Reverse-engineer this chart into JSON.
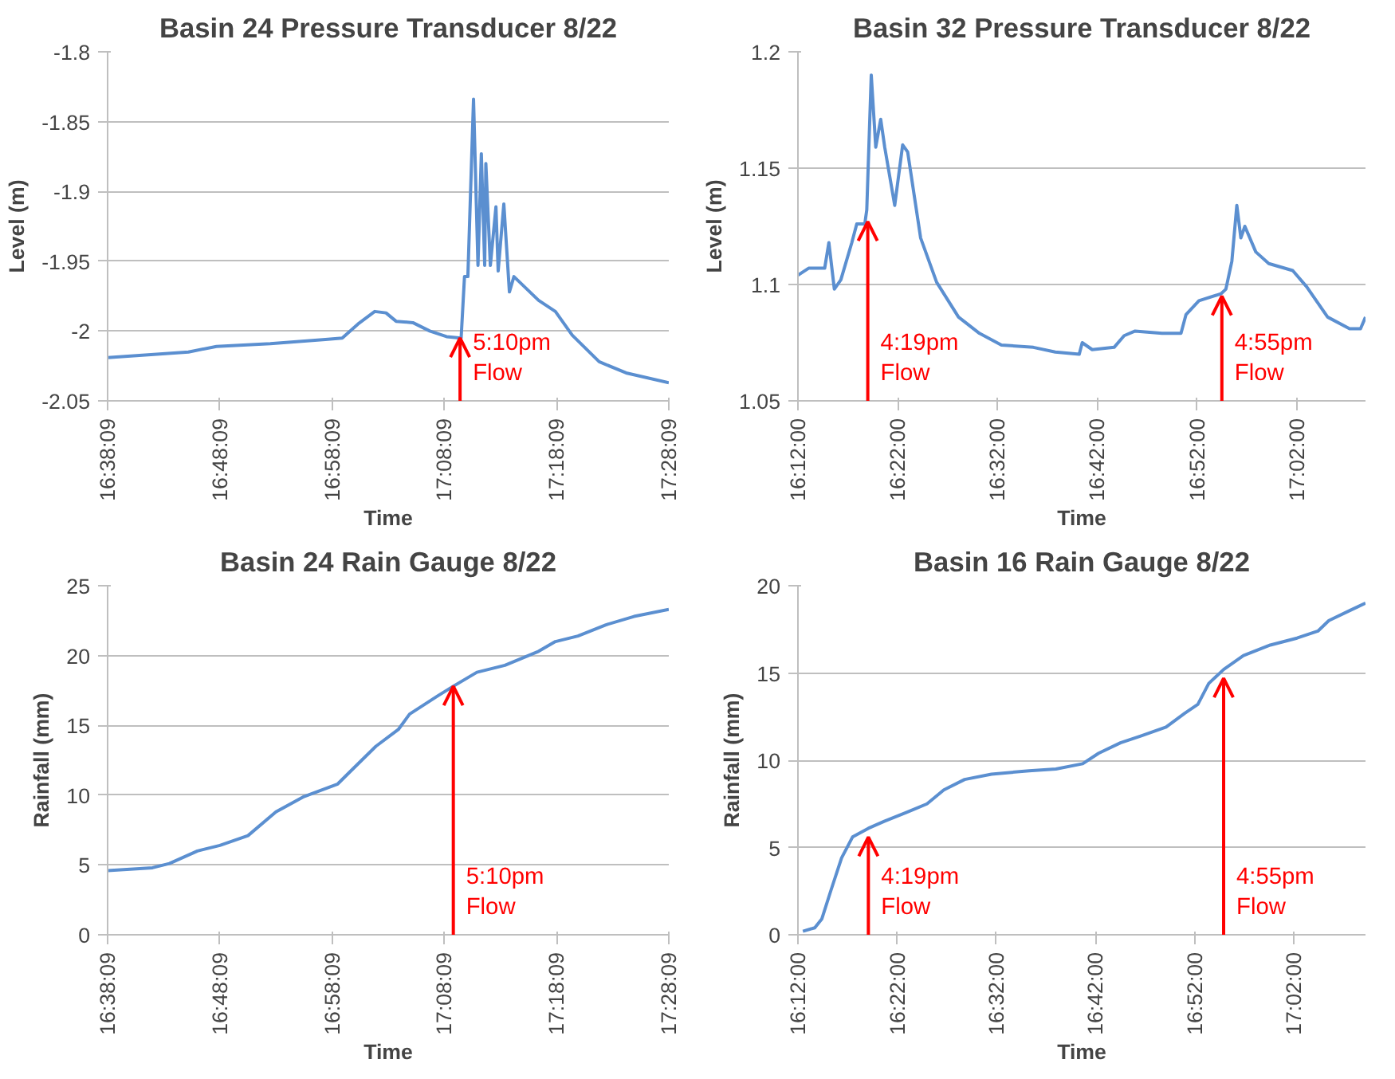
{
  "chart_data": [
    {
      "type": "line",
      "title": "Basin 24 Pressure Transducer 8/22",
      "xlabel": "Time",
      "ylabel": "Level (m)",
      "grid": "y",
      "x": [
        16.6358,
        16.7558,
        16.7975,
        16.8775,
        16.9592,
        16.9842,
        17.0075,
        17.0325,
        17.0492,
        17.0642,
        17.0892,
        17.1142,
        17.1392,
        17.1608,
        17.1658,
        17.1708,
        17.1792,
        17.1858,
        17.1908,
        17.1958,
        17.1975,
        17.2042,
        17.2125,
        17.2158,
        17.2242,
        17.2325,
        17.2392,
        17.2758,
        17.3008,
        17.3258,
        17.3658,
        17.4058,
        17.4692
      ],
      "series": [
        {
          "color": "#5b8fd0",
          "values": [
            -2.019,
            -2.015,
            -2.011,
            -2.009,
            -2.006,
            -2.005,
            -1.995,
            -1.986,
            -1.987,
            -1.993,
            -1.994,
            -2.0,
            -2.004,
            -2.005,
            -1.961,
            -1.961,
            -1.834,
            -1.953,
            -1.873,
            -1.953,
            -1.88,
            -1.953,
            -1.911,
            -1.957,
            -1.909,
            -1.972,
            -1.961,
            -1.978,
            -1.986,
            -2.003,
            -2.022,
            -2.03,
            -2.037
          ]
        }
      ],
      "xlim": [
        16.6358,
        17.4692
      ],
      "xticks": [
        {
          "value": 16.6358,
          "label": "16:38:09"
        },
        {
          "value": 16.8025,
          "label": "16:48:09"
        },
        {
          "value": 16.9692,
          "label": "16:58:09"
        },
        {
          "value": 17.1358,
          "label": "17:08:09"
        },
        {
          "value": 17.3025,
          "label": "17:18:09"
        },
        {
          "value": 17.4692,
          "label": "17:28:09"
        }
      ],
      "ylim": [
        -2.05,
        -1.8
      ],
      "yticks": [
        -2.05,
        -2,
        -1.95,
        -1.9,
        -1.85,
        -1.8
      ],
      "annotations": [
        {
          "text": "5:10pm\nFlow",
          "x": 17.1592,
          "y": -2.005
        }
      ]
    },
    {
      "type": "line",
      "title": "Basin 32 Pressure Transducer 8/22",
      "xlabel": "Time",
      "ylabel": "Level (m)",
      "grid": "y",
      "x": [
        16.2,
        16.2178,
        16.2447,
        16.2517,
        16.2608,
        16.2717,
        16.29,
        16.2983,
        16.3117,
        16.315,
        16.3225,
        16.33,
        16.3383,
        16.345,
        16.3617,
        16.375,
        16.3833,
        16.405,
        16.4317,
        16.4683,
        16.5033,
        16.54,
        16.5933,
        16.63,
        16.67,
        16.675,
        16.6917,
        16.7283,
        16.745,
        16.7633,
        16.8083,
        16.84,
        16.8483,
        16.87,
        16.9067,
        16.915,
        16.925,
        16.9333,
        16.94,
        16.9467,
        16.965,
        16.9867,
        17.0267,
        17.05,
        17.085,
        17.1217,
        17.14,
        17.1483
      ],
      "series": [
        {
          "color": "#5b8fd0",
          "values": [
            1.104,
            1.107,
            1.107,
            1.118,
            1.098,
            1.102,
            1.118,
            1.126,
            1.126,
            1.132,
            1.19,
            1.159,
            1.171,
            1.159,
            1.134,
            1.16,
            1.157,
            1.12,
            1.101,
            1.086,
            1.079,
            1.074,
            1.073,
            1.071,
            1.07,
            1.075,
            1.072,
            1.073,
            1.078,
            1.08,
            1.079,
            1.079,
            1.087,
            1.093,
            1.096,
            1.098,
            1.11,
            1.134,
            1.12,
            1.125,
            1.114,
            1.109,
            1.106,
            1.099,
            1.086,
            1.081,
            1.081,
            1.086
          ]
        }
      ],
      "xlim": [
        16.2,
        17.1483
      ],
      "xticks": [
        {
          "value": 16.2,
          "label": "16:12:00"
        },
        {
          "value": 16.3667,
          "label": "16:22:00"
        },
        {
          "value": 16.5333,
          "label": "16:32:00"
        },
        {
          "value": 16.7,
          "label": "16:42:00"
        },
        {
          "value": 16.8667,
          "label": "16:52:00"
        },
        {
          "value": 17.0333,
          "label": "17:02:00"
        }
      ],
      "ylim": [
        1.05,
        1.2
      ],
      "yticks": [
        1.05,
        1.1,
        1.15,
        1.2
      ],
      "annotations": [
        {
          "text": "4:19pm\nFlow",
          "x": 16.3167,
          "y": 1.127
        },
        {
          "text": "4:55pm\nFlow",
          "x": 16.9083,
          "y": 1.095
        }
      ]
    },
    {
      "type": "line",
      "title": "Basin 24 Rain Gauge 8/22",
      "xlabel": "Time",
      "ylabel": "Rainfall (mm)",
      "grid": "y",
      "x": [
        16.6358,
        16.7025,
        16.7275,
        16.7692,
        16.8025,
        16.8442,
        16.8858,
        16.9275,
        16.9775,
        16.9942,
        17.0342,
        17.0675,
        17.0842,
        17.1258,
        17.1492,
        17.1842,
        17.2258,
        17.2758,
        17.3008,
        17.3342,
        17.3758,
        17.4175,
        17.4692
      ],
      "series": [
        {
          "color": "#5b8fd0",
          "values": [
            4.6,
            4.8,
            5.1,
            6.0,
            6.4,
            7.1,
            8.8,
            9.9,
            10.8,
            11.6,
            13.5,
            14.7,
            15.8,
            17.1,
            17.8,
            18.8,
            19.3,
            20.3,
            21.0,
            21.4,
            22.2,
            22.8,
            23.3
          ]
        }
      ],
      "xlim": [
        16.6358,
        17.4692
      ],
      "xticks": [
        {
          "value": 16.6358,
          "label": "16:38:09"
        },
        {
          "value": 16.8025,
          "label": "16:48:09"
        },
        {
          "value": 16.9692,
          "label": "16:58:09"
        },
        {
          "value": 17.1358,
          "label": "17:08:09"
        },
        {
          "value": 17.3025,
          "label": "17:18:09"
        },
        {
          "value": 17.4692,
          "label": "17:28:09"
        }
      ],
      "ylim": [
        0,
        25
      ],
      "yticks": [
        0,
        5,
        10,
        15,
        20,
        25
      ],
      "annotations": [
        {
          "text": "5:10pm\nFlow",
          "x": 17.1492,
          "y": 17.8
        }
      ]
    },
    {
      "type": "line",
      "title": "Basin 16 Rain Gauge 8/22",
      "xlabel": "Time",
      "ylabel": "Rainfall (mm)",
      "grid": "y",
      "x": [
        16.2083,
        16.2283,
        16.24,
        16.255,
        16.2733,
        16.2917,
        16.3183,
        16.345,
        16.3817,
        16.4167,
        16.445,
        16.48,
        16.525,
        16.5883,
        16.6333,
        16.6783,
        16.705,
        16.7417,
        16.7767,
        16.8183,
        16.85,
        16.8717,
        16.89,
        16.915,
        16.9483,
        16.9933,
        17.0383,
        17.0733,
        17.0917,
        17.1283,
        17.1533
      ],
      "series": [
        {
          "color": "#5b8fd0",
          "values": [
            0.2,
            0.4,
            0.9,
            2.5,
            4.4,
            5.6,
            6.1,
            6.5,
            7.0,
            7.5,
            8.3,
            8.9,
            9.2,
            9.4,
            9.5,
            9.8,
            10.4,
            11.0,
            11.4,
            11.9,
            12.7,
            13.2,
            14.4,
            15.2,
            16.0,
            16.6,
            17.0,
            17.4,
            18.0,
            18.6,
            19.0
          ]
        }
      ],
      "xlim": [
        16.2,
        17.1533
      ],
      "xticks": [
        {
          "value": 16.2,
          "label": "16:12:00"
        },
        {
          "value": 16.3667,
          "label": "16:22:00"
        },
        {
          "value": 16.5333,
          "label": "16:32:00"
        },
        {
          "value": 16.7,
          "label": "16:42:00"
        },
        {
          "value": 16.8667,
          "label": "16:52:00"
        },
        {
          "value": 17.0333,
          "label": "17:02:00"
        }
      ],
      "ylim": [
        0,
        20
      ],
      "yticks": [
        0,
        5,
        10,
        15,
        20
      ],
      "annotations": [
        {
          "text": "4:19pm\nFlow",
          "x": 16.3183,
          "y": 5.6
        },
        {
          "text": "4:55pm\nFlow",
          "x": 16.915,
          "y": 14.7
        }
      ]
    }
  ]
}
